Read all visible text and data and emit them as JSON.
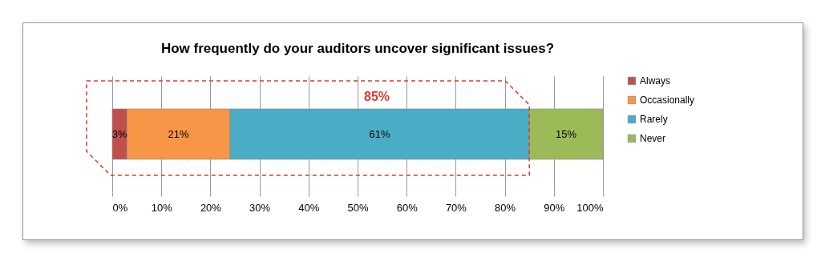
{
  "chart_data": {
    "type": "bar",
    "orientation": "horizontal",
    "stacked": true,
    "title": "How frequently do your auditors uncover significant issues?",
    "categories": [
      null
    ],
    "series": [
      {
        "name": "Always",
        "color": "#c0504d",
        "values": [
          3
        ],
        "value_labels": [
          "3%"
        ]
      },
      {
        "name": "Occasionally",
        "color": "#f79646",
        "values": [
          21
        ],
        "value_labels": [
          "21%"
        ]
      },
      {
        "name": "Rarely",
        "color": "#4bacc6",
        "values": [
          61
        ],
        "value_labels": [
          "61%"
        ]
      },
      {
        "name": "Never",
        "color": "#9bbb59",
        "values": [
          15
        ],
        "value_labels": [
          "15%"
        ]
      }
    ],
    "xlim": [
      0,
      100
    ],
    "xticks": [
      {
        "value": 0,
        "label": "0%"
      },
      {
        "value": 10,
        "label": "10%"
      },
      {
        "value": 20,
        "label": "20%"
      },
      {
        "value": 30,
        "label": "30%"
      },
      {
        "value": 40,
        "label": "40%"
      },
      {
        "value": 50,
        "label": "50%"
      },
      {
        "value": 60,
        "label": "60%"
      },
      {
        "value": 70,
        "label": "70%"
      },
      {
        "value": 80,
        "label": "80%"
      },
      {
        "value": 90,
        "label": "90%"
      },
      {
        "value": 100,
        "label": "100%"
      }
    ],
    "grid": "x",
    "legend": "right",
    "annotations": [
      "85%"
    ]
  }
}
